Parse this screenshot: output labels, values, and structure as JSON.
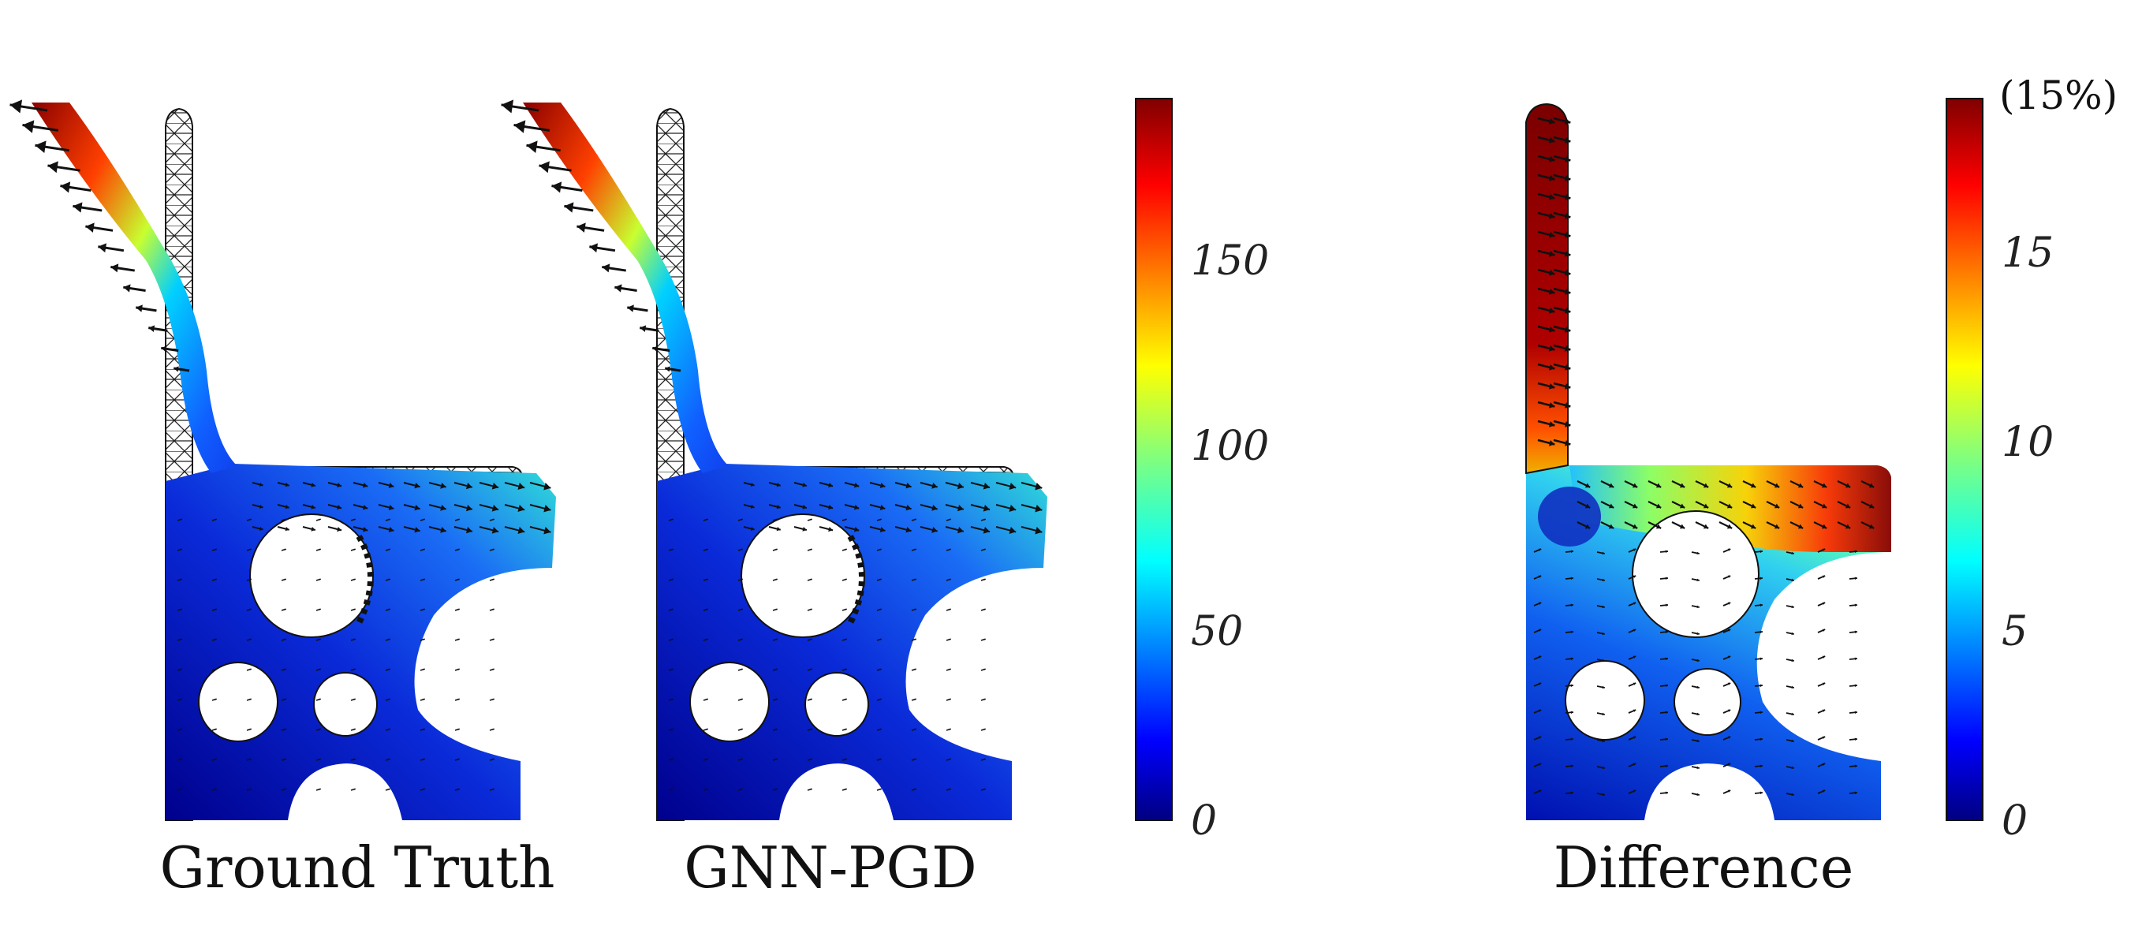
{
  "panels": [
    {
      "id": "ground-truth",
      "label": "Ground Truth"
    },
    {
      "id": "gnn-pgd",
      "label": "GNN-PGD"
    },
    {
      "id": "difference",
      "label": "Difference"
    }
  ],
  "colorbars": [
    {
      "id": "displacement",
      "ticks": [
        "0",
        "50",
        "100",
        "150"
      ],
      "range": [
        0,
        190
      ],
      "colormap": "jet"
    },
    {
      "id": "difference",
      "ticks": [
        "0",
        "5",
        "10",
        "15"
      ],
      "range": [
        0,
        18.5
      ],
      "note": "(15%)",
      "colormap": "jet"
    }
  ]
}
